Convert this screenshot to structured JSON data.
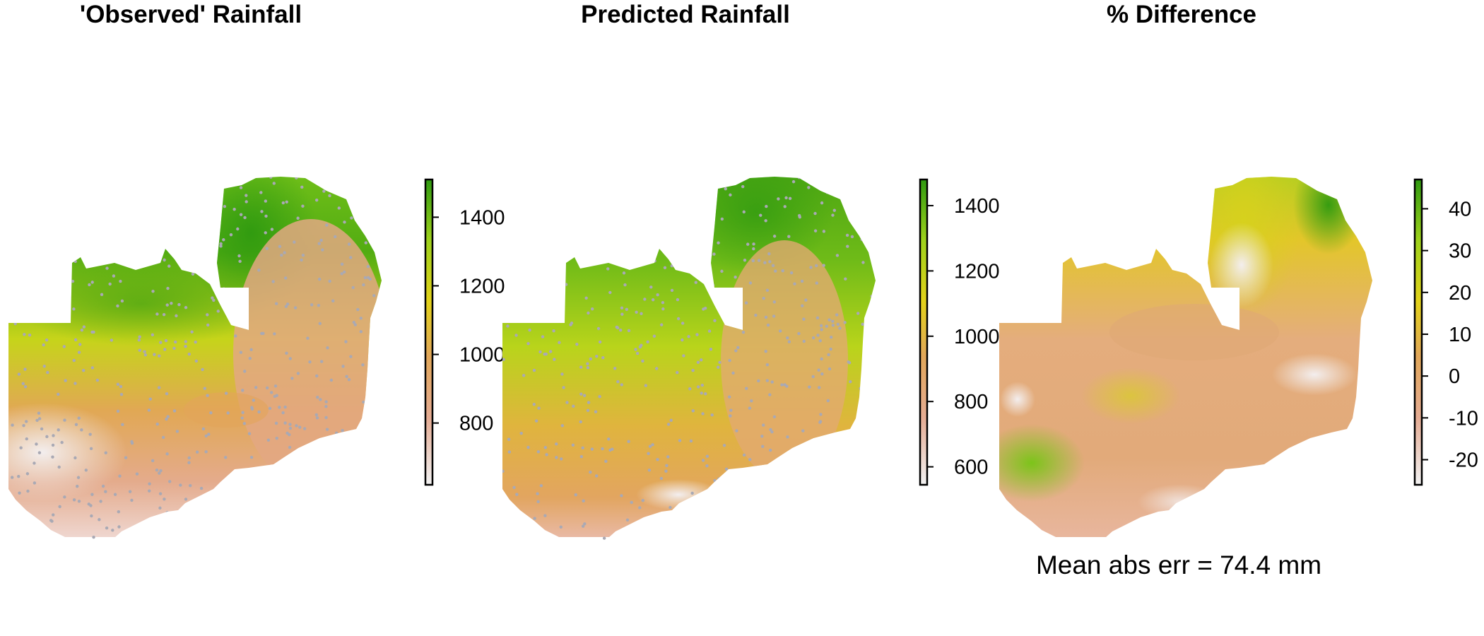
{
  "chart_data": [
    {
      "type": "heatmap",
      "title": "'Observed' Rainfall",
      "xlabel": "",
      "ylabel": "",
      "grid": false,
      "points_overlay": true,
      "colorbar": {
        "ticks": [
          800,
          1000,
          1200,
          1400
        ],
        "range": [
          620,
          1510
        ]
      }
    },
    {
      "type": "heatmap",
      "title": "Predicted Rainfall",
      "xlabel": "",
      "ylabel": "",
      "grid": false,
      "points_overlay": true,
      "colorbar": {
        "ticks": [
          600,
          800,
          1000,
          1200,
          1400
        ],
        "range": [
          545,
          1480
        ]
      }
    },
    {
      "type": "heatmap",
      "title": "% Difference",
      "xlabel": "",
      "ylabel": "",
      "grid": false,
      "points_overlay": false,
      "colorbar": {
        "ticks": [
          -20,
          -10,
          0,
          10,
          20,
          30,
          40
        ],
        "range": [
          -26,
          47
        ]
      }
    }
  ],
  "annotation": "Mean abs err = 74.4 mm",
  "colors": {
    "palette": [
      "#f2f2f2",
      "#e5ac93",
      "#e2a75a",
      "#e3d21a",
      "#9fd21b",
      "#2f9a10"
    ],
    "sample_points": "#a9a9b4"
  }
}
